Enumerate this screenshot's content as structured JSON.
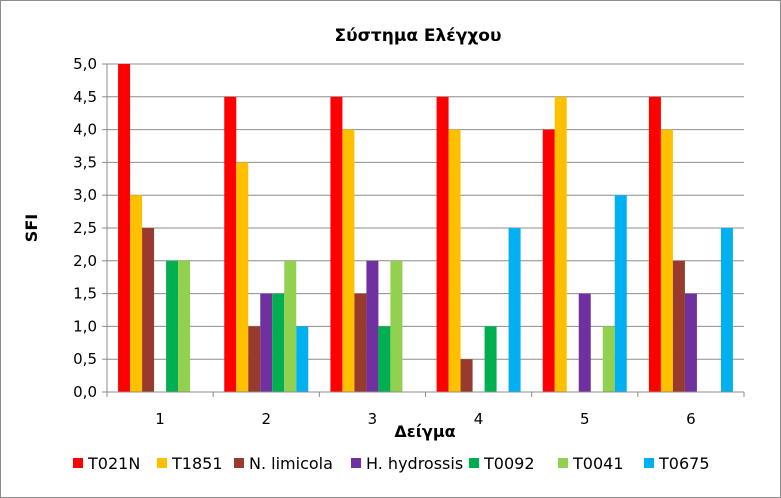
{
  "chart_data": {
    "type": "bar",
    "title": "Σύστημα Ελέγχου",
    "xlabel": "Δείγμα",
    "ylabel": "SFI",
    "categories": [
      "1",
      "2",
      "3",
      "4",
      "5",
      "6"
    ],
    "ylim": [
      0,
      5
    ],
    "yticks": [
      "0,0",
      "0,5",
      "1,0",
      "1,5",
      "2,0",
      "2,5",
      "3,0",
      "3,5",
      "4,0",
      "4,5",
      "5,0"
    ],
    "grid": true,
    "legend_position": "bottom",
    "series": [
      {
        "name": "T021N",
        "color": "#ff0000",
        "values": [
          5.0,
          4.5,
          4.5,
          4.5,
          4.0,
          4.5
        ]
      },
      {
        "name": "T1851",
        "color": "#ffc000",
        "values": [
          3.0,
          3.5,
          4.0,
          4.0,
          4.5,
          4.0
        ]
      },
      {
        "name": "N. limicola",
        "color": "#993a2e",
        "values": [
          2.5,
          1.0,
          1.5,
          0.5,
          0,
          2.0
        ]
      },
      {
        "name": "H. hydrossis",
        "color": "#7030a0",
        "values": [
          0,
          1.5,
          2.0,
          0,
          1.5,
          1.5
        ]
      },
      {
        "name": "T0092",
        "color": "#00b050",
        "values": [
          2.0,
          1.5,
          1.0,
          1.0,
          0,
          0
        ]
      },
      {
        "name": "T0041",
        "color": "#92d050",
        "values": [
          2.0,
          2.0,
          2.0,
          0,
          1.0,
          0
        ]
      },
      {
        "name": "T0675",
        "color": "#00b0f0",
        "values": [
          0,
          1.0,
          0,
          2.5,
          3.0,
          2.5
        ]
      }
    ]
  }
}
